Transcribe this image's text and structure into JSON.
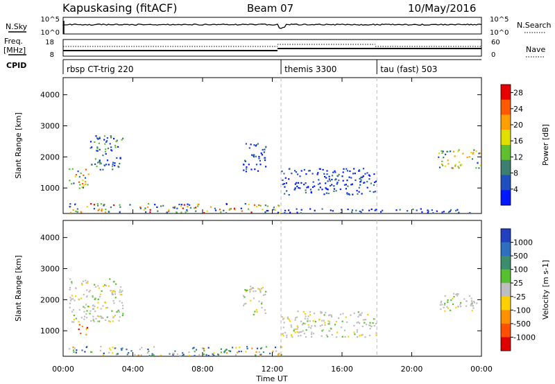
{
  "header": {
    "station": "Kapuskasing (fitACF)",
    "beam": "Beam 07",
    "date": "10/May/2016"
  },
  "noise_panel": {
    "left_label": "N.Sky",
    "right_label": "N.Search",
    "left_ticks": [
      "10^5",
      "10^0"
    ],
    "right_ticks": [
      "10^5",
      "10^0"
    ]
  },
  "freq_panel": {
    "left_label_top": "Freq.",
    "left_label_units": "[MHz]",
    "right_label": "Nave",
    "left_ticks": [
      "18",
      "8"
    ],
    "right_ticks": [
      "60",
      "0"
    ]
  },
  "cpid_panel": {
    "label": "CPID",
    "segments": [
      {
        "name": "rbsp CT-trig 220",
        "start_hour": 0.0,
        "end_hour": 12.5
      },
      {
        "name": "themis 3300",
        "start_hour": 12.5,
        "end_hour": 18.0
      },
      {
        "name": "tau (fast) 503",
        "start_hour": 18.0,
        "end_hour": 24.0
      }
    ]
  },
  "x_axis": {
    "label": "Time UT",
    "ticks": [
      "00:00",
      "04:00",
      "08:00",
      "12:00",
      "16:00",
      "20:00",
      "00:00"
    ],
    "range_hours": [
      0,
      24
    ]
  },
  "chart_data": [
    {
      "type": "heatmap",
      "title": "",
      "xlabel": "",
      "ylabel": "Slant Range [km]",
      "ylim": [
        180,
        4550
      ],
      "y_ticks": [
        "1000",
        "2000",
        "3000",
        "4000"
      ],
      "colorbar": {
        "label": "Power [dB]",
        "ticks": [
          "4",
          "8",
          "12",
          "16",
          "20",
          "24",
          "28"
        ],
        "range": [
          0,
          30
        ],
        "colors": [
          "#0018ff",
          "#1e4fbf",
          "#3c7f6e",
          "#5fbf2f",
          "#e0e000",
          "#ffa000",
          "#ff5a00",
          "#e80000"
        ]
      },
      "regions": [
        {
          "t": [
            0.3,
            1.5
          ],
          "r": [
            1000,
            1650
          ],
          "level": "mixed-high"
        },
        {
          "t": [
            1.5,
            3.4
          ],
          "r": [
            1600,
            2700
          ],
          "level": "low-mid"
        },
        {
          "t": [
            0.3,
            12.5
          ],
          "r": [
            220,
            520
          ],
          "level": "mixed"
        },
        {
          "t": [
            10.3,
            11.6
          ],
          "r": [
            1500,
            2450
          ],
          "level": "low"
        },
        {
          "t": [
            12.5,
            18.0
          ],
          "r": [
            800,
            1650
          ],
          "level": "low"
        },
        {
          "t": [
            12.5,
            24.0
          ],
          "r": [
            220,
            350
          ],
          "level": "low"
        },
        {
          "t": [
            21.5,
            23.9
          ],
          "r": [
            1650,
            2250
          ],
          "level": "mid-high"
        }
      ]
    },
    {
      "type": "heatmap",
      "title": "",
      "xlabel": "Time UT",
      "ylabel": "Slant Range [km]",
      "ylim": [
        180,
        4550
      ],
      "y_ticks": [
        "1000",
        "2000",
        "3000",
        "4000"
      ],
      "colorbar": {
        "label": "Velocity [m s-1]",
        "ticks": [
          "1000",
          "500",
          "100",
          "25",
          "-25",
          "-100",
          "-500",
          "-1000"
        ],
        "range": [
          -1000,
          1000
        ],
        "colors": [
          "#2040c0",
          "#2f6fbf",
          "#3c8c6e",
          "#55c030",
          "#bebebe",
          "#ffd000",
          "#ff9000",
          "#ff5000",
          "#e00000"
        ]
      },
      "regions": [
        {
          "t": [
            0.8,
            1.4
          ],
          "r": [
            900,
            1350
          ],
          "level": "negative"
        },
        {
          "t": [
            0.3,
            3.4
          ],
          "r": [
            1300,
            2700
          ],
          "level": "near-zero"
        },
        {
          "t": [
            0.3,
            12.5
          ],
          "r": [
            220,
            520
          ],
          "level": "mixed"
        },
        {
          "t": [
            10.3,
            11.6
          ],
          "r": [
            1500,
            2450
          ],
          "level": "near-zero"
        },
        {
          "t": [
            12.5,
            18.0
          ],
          "r": [
            800,
            1650
          ],
          "level": "near-zero"
        },
        {
          "t": [
            21.5,
            23.9
          ],
          "r": [
            1650,
            2250
          ],
          "level": "near-zero"
        }
      ]
    }
  ]
}
